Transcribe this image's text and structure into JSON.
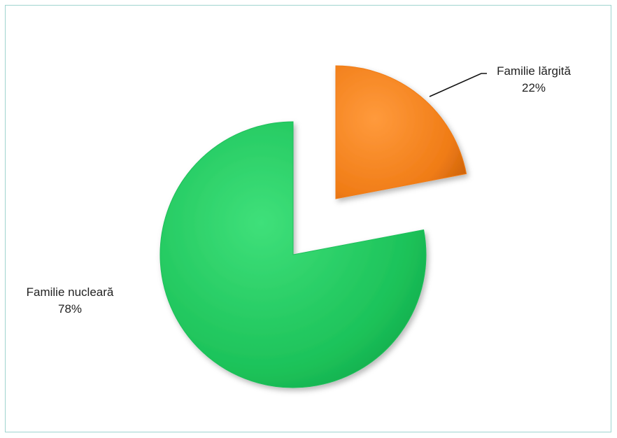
{
  "chart_data": {
    "type": "pie",
    "title": "",
    "slices": [
      {
        "label": "Familie nucleară",
        "value": 78,
        "percent_label": "78%",
        "color": "#1fbf5a",
        "exploded": true
      },
      {
        "label": "Familie lărgită",
        "value": 22,
        "percent_label": "22%",
        "color": "#f07c16",
        "exploded": true
      }
    ],
    "legend": "none",
    "style": "3d-bevel"
  }
}
